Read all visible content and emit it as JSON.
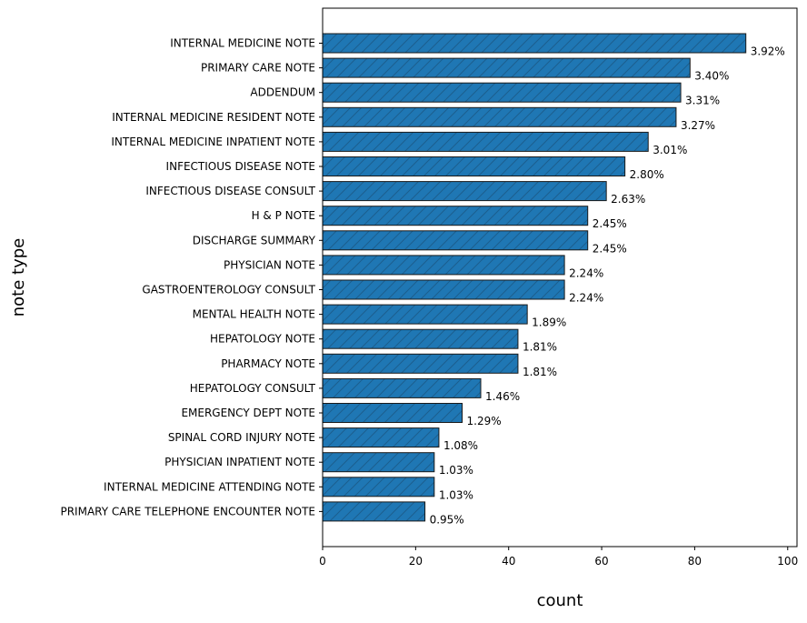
{
  "chart_data": {
    "type": "bar",
    "orientation": "horizontal",
    "xlabel": "count",
    "ylabel": "note type",
    "xlim": [
      0,
      102
    ],
    "xticks": [
      0,
      20,
      40,
      60,
      80,
      100
    ],
    "grid": false,
    "bar_color": "#1f77b4",
    "edge_color": "#1a1a1a",
    "hatch": "diagonal",
    "categories": [
      "INTERNAL MEDICINE NOTE",
      "PRIMARY CARE NOTE",
      "ADDENDUM",
      "INTERNAL MEDICINE RESIDENT NOTE",
      "INTERNAL MEDICINE INPATIENT NOTE",
      "INFECTIOUS DISEASE NOTE",
      "INFECTIOUS DISEASE CONSULT",
      "H & P NOTE",
      "DISCHARGE SUMMARY",
      "PHYSICIAN NOTE",
      "GASTROENTEROLOGY CONSULT",
      "MENTAL HEALTH NOTE",
      "HEPATOLOGY NOTE",
      "PHARMACY NOTE",
      "HEPATOLOGY CONSULT",
      "EMERGENCY DEPT NOTE",
      "SPINAL CORD INJURY NOTE",
      "PHYSICIAN INPATIENT NOTE",
      "INTERNAL MEDICINE ATTENDING NOTE",
      "PRIMARY CARE TELEPHONE ENCOUNTER NOTE"
    ],
    "values": [
      91,
      79,
      77,
      76,
      70,
      65,
      61,
      57,
      57,
      52,
      52,
      44,
      42,
      42,
      34,
      30,
      25,
      24,
      24,
      22
    ],
    "data_labels": [
      "3.92%",
      "3.40%",
      "3.31%",
      "3.27%",
      "3.01%",
      "2.80%",
      "2.63%",
      "2.45%",
      "2.45%",
      "2.24%",
      "2.24%",
      "1.89%",
      "1.81%",
      "1.81%",
      "1.46%",
      "1.29%",
      "1.08%",
      "1.03%",
      "1.03%",
      "0.95%"
    ]
  }
}
